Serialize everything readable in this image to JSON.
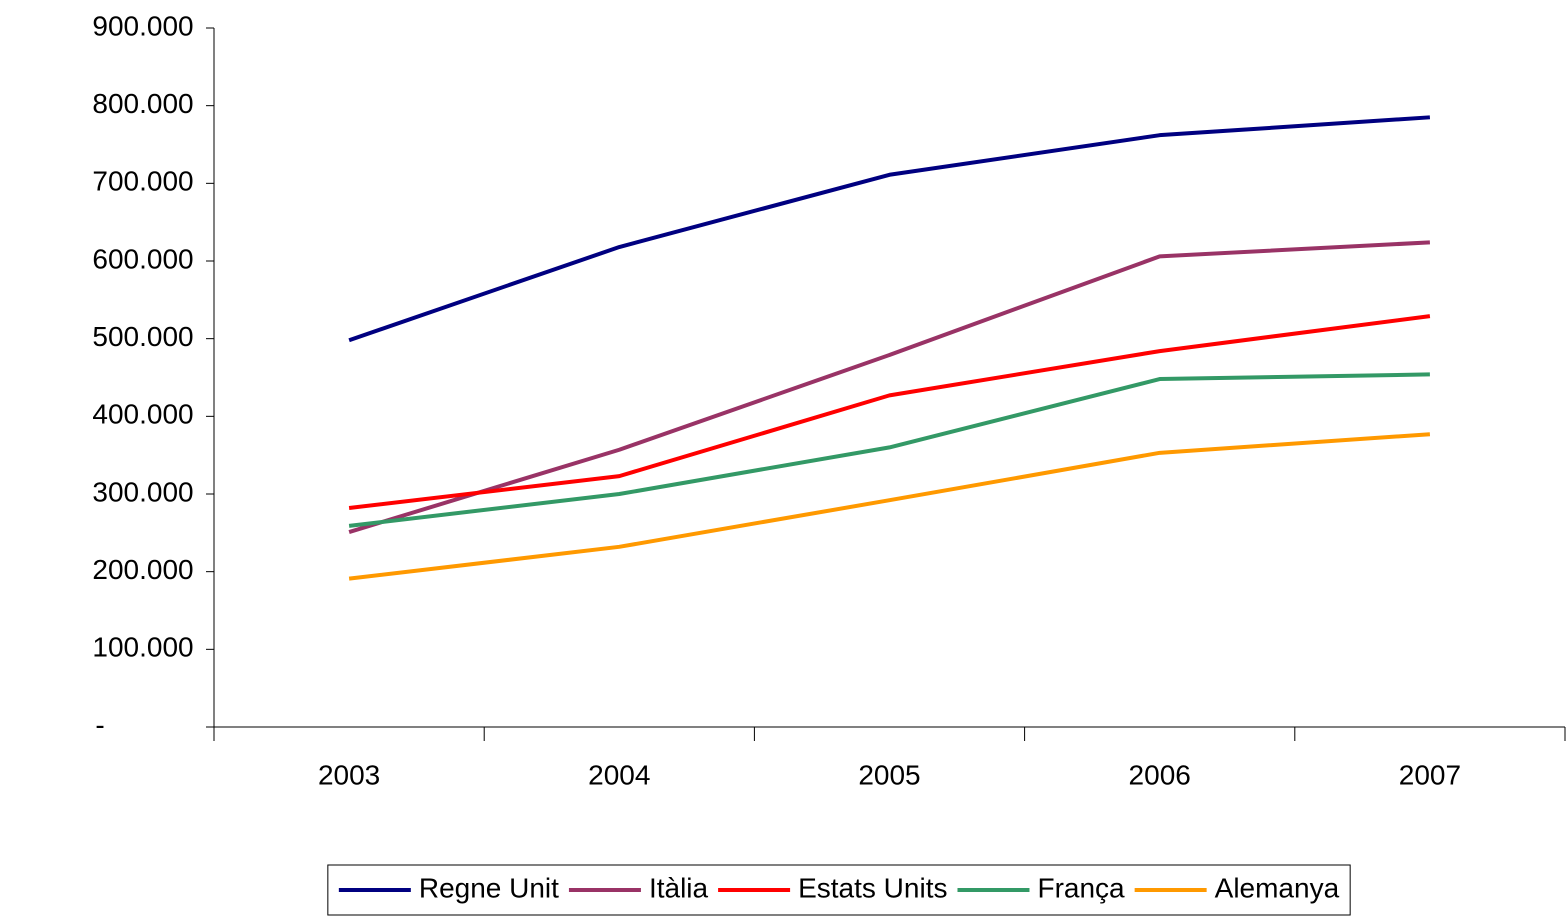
{
  "chart_data": {
    "type": "line",
    "categories": [
      "2003",
      "2004",
      "2005",
      "2006",
      "2007"
    ],
    "series": [
      {
        "name": "Regne Unit",
        "color": "#000080",
        "values": [
          498000,
          618000,
          711000,
          762000,
          785000
        ]
      },
      {
        "name": "Itàlia",
        "color": "#993366",
        "values": [
          251000,
          357000,
          479000,
          606000,
          624000
        ]
      },
      {
        "name": "Estats Units",
        "color": "#ff0000",
        "values": [
          282000,
          323000,
          427000,
          484000,
          529000
        ]
      },
      {
        "name": "França",
        "color": "#339966",
        "values": [
          259000,
          300000,
          360000,
          448000,
          454000
        ]
      },
      {
        "name": "Alemanya",
        "color": "#ff9900",
        "values": [
          191000,
          232000,
          292000,
          353000,
          377000
        ]
      }
    ],
    "ylim": [
      0,
      900000
    ],
    "yticks": [
      {
        "value": 0,
        "label": "-"
      },
      {
        "value": 100000,
        "label": "100.000"
      },
      {
        "value": 200000,
        "label": "200.000"
      },
      {
        "value": 300000,
        "label": "300.000"
      },
      {
        "value": 400000,
        "label": "400.000"
      },
      {
        "value": 500000,
        "label": "500.000"
      },
      {
        "value": 600000,
        "label": "600.000"
      },
      {
        "value": 700000,
        "label": "700.000"
      },
      {
        "value": 800000,
        "label": "800.000"
      },
      {
        "value": 900000,
        "label": "900.000"
      }
    ],
    "grid": false,
    "legend": "bottom"
  }
}
